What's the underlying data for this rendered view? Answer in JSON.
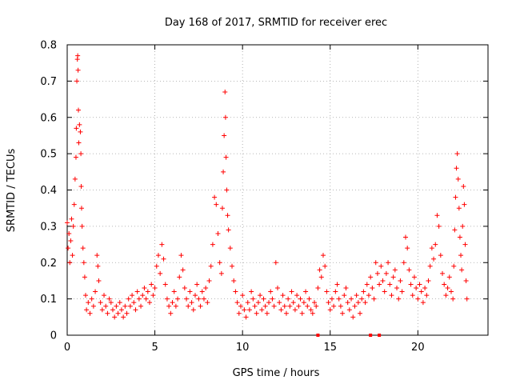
{
  "chart_data": {
    "type": "scatter",
    "title": "Day 168 of 2017, SRMTID for receiver erec",
    "xlabel": "GPS time / hours",
    "ylabel": "SRMTID / TECUs",
    "xlim": [
      0,
      24
    ],
    "ylim": [
      0,
      0.8
    ],
    "x_ticks": [
      0,
      5,
      10,
      15,
      20
    ],
    "x_tick_labels": [
      "0",
      "5",
      "10",
      "15",
      "20"
    ],
    "y_ticks": [
      0,
      0.1,
      0.2,
      0.3,
      0.4,
      0.5,
      0.6,
      0.7,
      0.8
    ],
    "y_tick_labels": [
      "0",
      "0.1",
      "0.2",
      "0.3",
      "0.4",
      "0.5",
      "0.6",
      "0.7",
      "0.8"
    ],
    "grid": true,
    "marker": "plus",
    "color": "#ff0000",
    "series": [
      {
        "name": "SRMTID",
        "points": [
          [
            0.0,
            0.31
          ],
          [
            0.05,
            0.24
          ],
          [
            0.1,
            0.28
          ],
          [
            0.15,
            0.2
          ],
          [
            0.2,
            0.26
          ],
          [
            0.25,
            0.32
          ],
          [
            0.3,
            0.22
          ],
          [
            0.35,
            0.3
          ],
          [
            0.4,
            0.36
          ],
          [
            0.45,
            0.43
          ],
          [
            0.5,
            0.49
          ],
          [
            0.52,
            0.57
          ],
          [
            0.55,
            0.7
          ],
          [
            0.58,
            0.76
          ],
          [
            0.6,
            0.77
          ],
          [
            0.62,
            0.73
          ],
          [
            0.64,
            0.62
          ],
          [
            0.66,
            0.53
          ],
          [
            0.7,
            0.58
          ],
          [
            0.75,
            0.56
          ],
          [
            0.78,
            0.5
          ],
          [
            0.8,
            0.41
          ],
          [
            0.82,
            0.35
          ],
          [
            0.85,
            0.3
          ],
          [
            0.9,
            0.24
          ],
          [
            0.95,
            0.2
          ],
          [
            1.0,
            0.16
          ],
          [
            1.05,
            0.11
          ],
          [
            1.1,
            0.07
          ],
          [
            1.2,
            0.09
          ],
          [
            1.3,
            0.06
          ],
          [
            1.4,
            0.1
          ],
          [
            1.5,
            0.08
          ],
          [
            1.6,
            0.12
          ],
          [
            1.7,
            0.22
          ],
          [
            1.75,
            0.19
          ],
          [
            1.8,
            0.15
          ],
          [
            1.9,
            0.09
          ],
          [
            2.0,
            0.07
          ],
          [
            2.1,
            0.11
          ],
          [
            2.2,
            0.08
          ],
          [
            2.3,
            0.06
          ],
          [
            2.4,
            0.1
          ],
          [
            2.5,
            0.09
          ],
          [
            2.6,
            0.07
          ],
          [
            2.7,
            0.05
          ],
          [
            2.8,
            0.08
          ],
          [
            2.9,
            0.06
          ],
          [
            3.0,
            0.09
          ],
          [
            3.1,
            0.07
          ],
          [
            3.2,
            0.05
          ],
          [
            3.3,
            0.08
          ],
          [
            3.4,
            0.06
          ],
          [
            3.5,
            0.1
          ],
          [
            3.6,
            0.08
          ],
          [
            3.7,
            0.11
          ],
          [
            3.8,
            0.09
          ],
          [
            3.9,
            0.07
          ],
          [
            4.0,
            0.12
          ],
          [
            4.1,
            0.1
          ],
          [
            4.2,
            0.08
          ],
          [
            4.3,
            0.11
          ],
          [
            4.4,
            0.13
          ],
          [
            4.5,
            0.1
          ],
          [
            4.6,
            0.12
          ],
          [
            4.7,
            0.09
          ],
          [
            4.8,
            0.14
          ],
          [
            4.9,
            0.11
          ],
          [
            5.0,
            0.13
          ],
          [
            5.1,
            0.19
          ],
          [
            5.2,
            0.22
          ],
          [
            5.3,
            0.17
          ],
          [
            5.4,
            0.25
          ],
          [
            5.5,
            0.21
          ],
          [
            5.6,
            0.14
          ],
          [
            5.7,
            0.1
          ],
          [
            5.8,
            0.08
          ],
          [
            5.9,
            0.06
          ],
          [
            6.0,
            0.09
          ],
          [
            6.1,
            0.12
          ],
          [
            6.2,
            0.08
          ],
          [
            6.3,
            0.1
          ],
          [
            6.4,
            0.16
          ],
          [
            6.5,
            0.22
          ],
          [
            6.6,
            0.18
          ],
          [
            6.7,
            0.13
          ],
          [
            6.8,
            0.1
          ],
          [
            6.9,
            0.08
          ],
          [
            7.0,
            0.12
          ],
          [
            7.1,
            0.09
          ],
          [
            7.2,
            0.07
          ],
          [
            7.3,
            0.11
          ],
          [
            7.4,
            0.14
          ],
          [
            7.5,
            0.1
          ],
          [
            7.6,
            0.08
          ],
          [
            7.7,
            0.12
          ],
          [
            7.8,
            0.1
          ],
          [
            7.9,
            0.13
          ],
          [
            8.0,
            0.09
          ],
          [
            8.1,
            0.15
          ],
          [
            8.2,
            0.19
          ],
          [
            8.3,
            0.25
          ],
          [
            8.4,
            0.38
          ],
          [
            8.5,
            0.36
          ],
          [
            8.6,
            0.28
          ],
          [
            8.7,
            0.2
          ],
          [
            8.8,
            0.17
          ],
          [
            8.85,
            0.35
          ],
          [
            8.9,
            0.45
          ],
          [
            8.95,
            0.55
          ],
          [
            9.0,
            0.67
          ],
          [
            9.03,
            0.6
          ],
          [
            9.06,
            0.49
          ],
          [
            9.1,
            0.4
          ],
          [
            9.15,
            0.33
          ],
          [
            9.2,
            0.29
          ],
          [
            9.3,
            0.24
          ],
          [
            9.4,
            0.19
          ],
          [
            9.5,
            0.15
          ],
          [
            9.6,
            0.12
          ],
          [
            9.7,
            0.09
          ],
          [
            9.8,
            0.06
          ],
          [
            9.9,
            0.08
          ],
          [
            10.0,
            0.11
          ],
          [
            10.1,
            0.07
          ],
          [
            10.2,
            0.05
          ],
          [
            10.3,
            0.09
          ],
          [
            10.4,
            0.07
          ],
          [
            10.5,
            0.12
          ],
          [
            10.6,
            0.1
          ],
          [
            10.7,
            0.08
          ],
          [
            10.8,
            0.06
          ],
          [
            10.9,
            0.09
          ],
          [
            11.0,
            0.11
          ],
          [
            11.1,
            0.07
          ],
          [
            11.2,
            0.1
          ],
          [
            11.3,
            0.08
          ],
          [
            11.4,
            0.06
          ],
          [
            11.5,
            0.09
          ],
          [
            11.6,
            0.12
          ],
          [
            11.7,
            0.1
          ],
          [
            11.8,
            0.08
          ],
          [
            11.9,
            0.2
          ],
          [
            12.0,
            0.13
          ],
          [
            12.1,
            0.09
          ],
          [
            12.2,
            0.07
          ],
          [
            12.3,
            0.11
          ],
          [
            12.4,
            0.08
          ],
          [
            12.5,
            0.06
          ],
          [
            12.6,
            0.1
          ],
          [
            12.7,
            0.08
          ],
          [
            12.8,
            0.12
          ],
          [
            12.9,
            0.09
          ],
          [
            13.0,
            0.07
          ],
          [
            13.1,
            0.11
          ],
          [
            13.2,
            0.08
          ],
          [
            13.3,
            0.1
          ],
          [
            13.4,
            0.06
          ],
          [
            13.5,
            0.09
          ],
          [
            13.6,
            0.12
          ],
          [
            13.7,
            0.08
          ],
          [
            13.8,
            0.1
          ],
          [
            13.9,
            0.07
          ],
          [
            14.0,
            0.06
          ],
          [
            14.1,
            0.09
          ],
          [
            14.2,
            0.08
          ],
          [
            14.3,
            0.13
          ],
          [
            14.4,
            0.18
          ],
          [
            14.5,
            0.16
          ],
          [
            14.6,
            0.22
          ],
          [
            14.7,
            0.19
          ],
          [
            14.8,
            0.12
          ],
          [
            14.9,
            0.09
          ],
          [
            15.0,
            0.07
          ],
          [
            15.1,
            0.1
          ],
          [
            15.2,
            0.08
          ],
          [
            15.3,
            0.12
          ],
          [
            15.4,
            0.14
          ],
          [
            15.5,
            0.1
          ],
          [
            15.6,
            0.08
          ],
          [
            15.7,
            0.06
          ],
          [
            15.8,
            0.11
          ],
          [
            15.9,
            0.13
          ],
          [
            16.0,
            0.09
          ],
          [
            16.1,
            0.07
          ],
          [
            16.2,
            0.1
          ],
          [
            16.3,
            0.05
          ],
          [
            16.4,
            0.08
          ],
          [
            16.5,
            0.11
          ],
          [
            16.6,
            0.09
          ],
          [
            16.7,
            0.06
          ],
          [
            16.8,
            0.1
          ],
          [
            16.9,
            0.12
          ],
          [
            17.0,
            0.09
          ],
          [
            17.1,
            0.14
          ],
          [
            17.2,
            0.11
          ],
          [
            17.3,
            0.16
          ],
          [
            17.4,
            0.13
          ],
          [
            17.5,
            0.1
          ],
          [
            17.6,
            0.2
          ],
          [
            17.7,
            0.17
          ],
          [
            17.8,
            0.14
          ],
          [
            17.9,
            0.19
          ],
          [
            18.0,
            0.15
          ],
          [
            18.1,
            0.12
          ],
          [
            18.2,
            0.17
          ],
          [
            18.3,
            0.2
          ],
          [
            18.4,
            0.14
          ],
          [
            18.5,
            0.11
          ],
          [
            18.6,
            0.16
          ],
          [
            18.7,
            0.18
          ],
          [
            18.8,
            0.13
          ],
          [
            18.9,
            0.1
          ],
          [
            19.0,
            0.15
          ],
          [
            19.1,
            0.12
          ],
          [
            19.2,
            0.2
          ],
          [
            19.3,
            0.27
          ],
          [
            19.4,
            0.24
          ],
          [
            19.5,
            0.18
          ],
          [
            19.6,
            0.14
          ],
          [
            19.7,
            0.11
          ],
          [
            19.8,
            0.16
          ],
          [
            19.9,
            0.13
          ],
          [
            20.0,
            0.1
          ],
          [
            20.1,
            0.14
          ],
          [
            20.2,
            0.12
          ],
          [
            20.3,
            0.09
          ],
          [
            20.4,
            0.13
          ],
          [
            20.5,
            0.11
          ],
          [
            20.6,
            0.15
          ],
          [
            20.7,
            0.19
          ],
          [
            20.8,
            0.24
          ],
          [
            20.9,
            0.21
          ],
          [
            21.0,
            0.25
          ],
          [
            21.1,
            0.33
          ],
          [
            21.2,
            0.3
          ],
          [
            21.3,
            0.22
          ],
          [
            21.4,
            0.17
          ],
          [
            21.5,
            0.14
          ],
          [
            21.6,
            0.11
          ],
          [
            21.7,
            0.13
          ],
          [
            21.8,
            0.16
          ],
          [
            21.9,
            0.12
          ],
          [
            22.0,
            0.1
          ],
          [
            22.05,
            0.19
          ],
          [
            22.1,
            0.29
          ],
          [
            22.15,
            0.38
          ],
          [
            22.2,
            0.46
          ],
          [
            22.25,
            0.5
          ],
          [
            22.3,
            0.43
          ],
          [
            22.35,
            0.35
          ],
          [
            22.4,
            0.27
          ],
          [
            22.45,
            0.22
          ],
          [
            22.5,
            0.18
          ],
          [
            22.55,
            0.3
          ],
          [
            22.6,
            0.41
          ],
          [
            22.65,
            0.36
          ],
          [
            22.7,
            0.25
          ],
          [
            22.75,
            0.15
          ],
          [
            22.8,
            0.1
          ]
        ]
      }
    ],
    "zero_markers_x": [
      14.3,
      17.3,
      17.8
    ]
  }
}
